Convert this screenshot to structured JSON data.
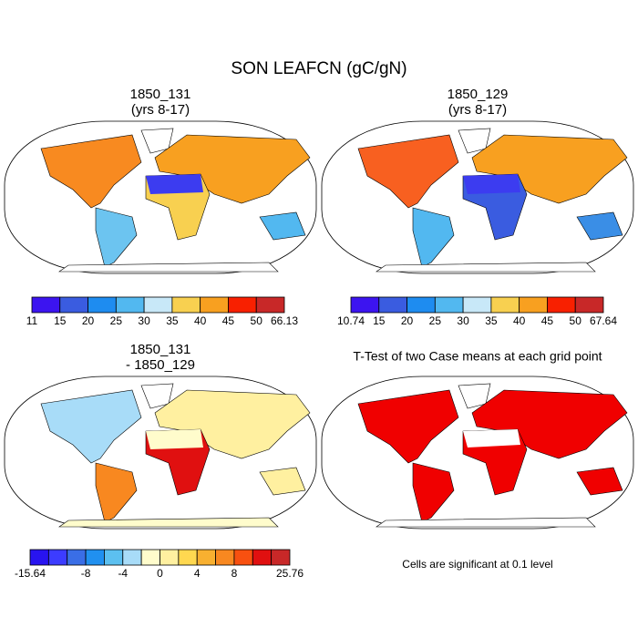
{
  "title": "SON LEAFCN (gC/gN)",
  "panels": [
    {
      "title": "1850_131",
      "subtitle": "(yrs 8-17)"
    },
    {
      "title": "1850_129",
      "subtitle": "(yrs 8-17)"
    },
    {
      "title": "1850_131",
      "subtitle": "- 1850_129"
    },
    {
      "title": "T-Test of two Case means at each grid point"
    }
  ],
  "colorbars": [
    {
      "colors": [
        "#3c14f0",
        "#3a5ce0",
        "#1e8cf0",
        "#52b8f0",
        "#c8e8f8",
        "#f8d050",
        "#f8a020",
        "#f82000",
        "#c82828"
      ],
      "labels": [
        11,
        15,
        20,
        25,
        30,
        35,
        40,
        45,
        50,
        66.13
      ]
    },
    {
      "colors": [
        "#3c14f0",
        "#3a5ce0",
        "#1e8cf0",
        "#52b8f0",
        "#c8e8f8",
        "#f8d050",
        "#f8a020",
        "#f82000",
        "#c82828"
      ],
      "labels": [
        10.74,
        15,
        20,
        25,
        30,
        35,
        40,
        45,
        50,
        67.64
      ]
    },
    {
      "colors": [
        "#2814f0",
        "#3c3cff",
        "#3a6ee6",
        "#2090f0",
        "#5cc0f0",
        "#a8dcf8",
        "#fffccc",
        "#fff0a0",
        "#ffd850",
        "#f8b030",
        "#f88820",
        "#f85010",
        "#e01010",
        "#c82828"
      ],
      "labels": [
        -15.64,
        -8,
        -4,
        0,
        4,
        8,
        25.76
      ]
    }
  ],
  "note": "Cells are significant at 0.1 level"
}
